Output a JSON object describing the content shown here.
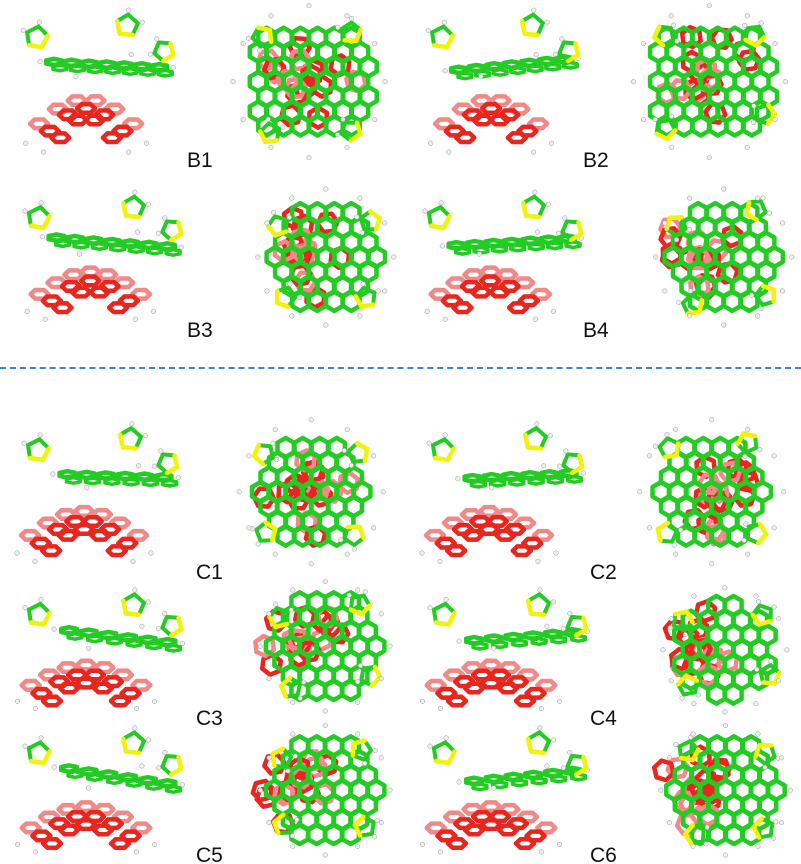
{
  "labels": {
    "B1": "B1",
    "B2": "B2",
    "B3": "B3",
    "B4": "B4",
    "C1": "C1",
    "C2": "C2",
    "C3": "C3",
    "C4": "C4",
    "C5": "C5",
    "C6": "C6"
  },
  "colors": {
    "host_molecule": "#22cc22",
    "guest_molecule": "#e8251e",
    "guest_shadow": "#f08a88",
    "sulfur": "#f2f20a",
    "hydrogen": "#eeeeee",
    "divider": "#3a86d4",
    "label_text": "#111111"
  },
  "icons": {
    "structure_side": "molecular-structure-side-view",
    "structure_top": "molecular-structure-top-view"
  }
}
